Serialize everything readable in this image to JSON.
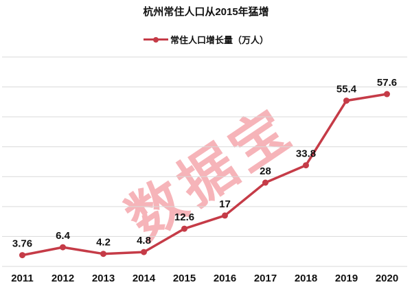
{
  "title": "杭州常住人口从2015年猛增",
  "watermark": "数据宝",
  "colors": {
    "line": "#c53b47",
    "marker": "#c53b47",
    "grid": "#d9d9d9",
    "text": "#111111",
    "watermark": "rgba(236, 88, 99, 0.45)"
  },
  "chart_data": {
    "type": "line",
    "title": "杭州常住人口从2015年猛增",
    "categories": [
      "2011",
      "2012",
      "2013",
      "2014",
      "2015",
      "2016",
      "2017",
      "2018",
      "2019",
      "2020"
    ],
    "series": [
      {
        "name": "常住人口增长量（万人）",
        "values": [
          3.76,
          6.4,
          4.2,
          4.8,
          12.6,
          17,
          28,
          33.8,
          55.4,
          57.6
        ]
      }
    ],
    "data_labels": [
      "3.76",
      "6.4",
      "4.2",
      "4.8",
      "12.6",
      "17",
      "28",
      "33.8",
      "55.4",
      "57.6"
    ],
    "xlabel": "",
    "ylabel": "",
    "ylim": [
      0,
      70
    ],
    "grid_step": 10,
    "grid": true,
    "y_tick_labels_visible": false,
    "legend_position": "top"
  }
}
